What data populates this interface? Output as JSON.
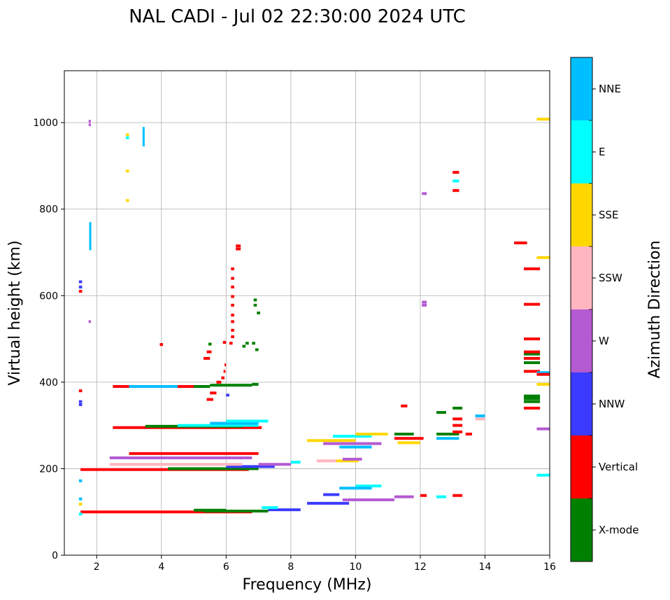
{
  "chart_data": {
    "type": "scatter",
    "title": "NAL CADI - Jul 02 22:30:00 2024 UTC",
    "xlabel": "Frequency (MHz)",
    "ylabel": "Virtual height (km)",
    "xlim": [
      1,
      16
    ],
    "ylim": [
      0,
      1120
    ],
    "xticks": [
      2,
      4,
      6,
      8,
      10,
      12,
      14,
      16
    ],
    "yticks": [
      0,
      200,
      400,
      600,
      800,
      1000
    ],
    "grid": true,
    "colorbar": {
      "title": "Azimuth Direction",
      "categories": [
        {
          "label": "X-mode",
          "color": "#008000"
        },
        {
          "label": "Vertical",
          "color": "#ff0000"
        },
        {
          "label": "NNW",
          "color": "#3b3bff"
        },
        {
          "label": "W",
          "color": "#b45ad2"
        },
        {
          "label": "SSW",
          "color": "#ffb6c1"
        },
        {
          "label": "SSE",
          "color": "#ffd700"
        },
        {
          "label": "E",
          "color": "#00ffff"
        },
        {
          "label": "NNE",
          "color": "#00bfff"
        }
      ]
    },
    "segments": [
      {
        "x": [
          1.5,
          6.8
        ],
        "y": 100,
        "c": "Vertical"
      },
      {
        "x": [
          5.3,
          7.3
        ],
        "y": 102,
        "c": "X-mode"
      },
      {
        "x": [
          7.3,
          8.3
        ],
        "y": 105,
        "c": "NNW"
      },
      {
        "x": [
          7.1,
          7.6
        ],
        "y": 110,
        "c": "E"
      },
      {
        "x": [
          5.0,
          6.0
        ],
        "y": 104,
        "c": "X-mode"
      },
      {
        "x": [
          8.5,
          9.8
        ],
        "y": 120,
        "c": "NNW"
      },
      {
        "x": [
          9.6,
          11.2
        ],
        "y": 128,
        "c": "W"
      },
      {
        "x": [
          10.0,
          10.8
        ],
        "y": 160,
        "c": "E"
      },
      {
        "x": [
          9.5,
          10.5
        ],
        "y": 155,
        "c": "NNE"
      },
      {
        "x": [
          9.0,
          9.5
        ],
        "y": 140,
        "c": "NNW"
      },
      {
        "x": [
          11.2,
          11.8
        ],
        "y": 135,
        "c": "W"
      },
      {
        "x": [
          12.5,
          12.8
        ],
        "y": 135,
        "c": "E"
      },
      {
        "x": [
          13.0,
          13.3
        ],
        "y": 138,
        "c": "Vertical"
      },
      {
        "x": [
          12.0,
          12.2
        ],
        "y": 138,
        "c": "Vertical"
      },
      {
        "x": [
          1.5,
          6.7
        ],
        "y": 198,
        "c": "Vertical"
      },
      {
        "x": [
          4.2,
          7.0
        ],
        "y": 200,
        "c": "X-mode"
      },
      {
        "x": [
          6.0,
          7.5
        ],
        "y": 205,
        "c": "NNW"
      },
      {
        "x": [
          7.0,
          8.0
        ],
        "y": 210,
        "c": "W"
      },
      {
        "x": [
          8.0,
          8.3
        ],
        "y": 215,
        "c": "E"
      },
      {
        "x": [
          8.8,
          9.4
        ],
        "y": 218,
        "c": "SSW"
      },
      {
        "x": [
          9.4,
          10.1
        ],
        "y": 218,
        "c": "SSE"
      },
      {
        "x": [
          9.6,
          10.2
        ],
        "y": 222,
        "c": "W"
      },
      {
        "x": [
          2.4,
          6.5
        ],
        "y": 210,
        "c": "SSW"
      },
      {
        "x": [
          2.4,
          6.8
        ],
        "y": 225,
        "c": "W"
      },
      {
        "x": [
          3.0,
          7.0
        ],
        "y": 235,
        "c": "Vertical"
      },
      {
        "x": [
          2.5,
          4.0
        ],
        "y": 390,
        "c": "Vertical"
      },
      {
        "x": [
          3.0,
          4.5
        ],
        "y": 390,
        "c": "NNE"
      },
      {
        "x": [
          4.5,
          5.3
        ],
        "y": 390,
        "c": "Vertical"
      },
      {
        "x": [
          5.0,
          5.5
        ],
        "y": 390,
        "c": "X-mode"
      },
      {
        "x": [
          5.5,
          6.8
        ],
        "y": 393,
        "c": "X-mode"
      },
      {
        "x": [
          6.8,
          7.0
        ],
        "y": 395,
        "c": "X-mode"
      },
      {
        "x": [
          2.5,
          7.1
        ],
        "y": 295,
        "c": "Vertical"
      },
      {
        "x": [
          3.5,
          6.5
        ],
        "y": 298,
        "c": "X-mode"
      },
      {
        "x": [
          4.5,
          7.0
        ],
        "y": 300,
        "c": "E"
      },
      {
        "x": [
          5.5,
          7.0
        ],
        "y": 305,
        "c": "NNE"
      },
      {
        "x": [
          6.0,
          7.3
        ],
        "y": 310,
        "c": "E"
      },
      {
        "x": [
          8.5,
          10.0
        ],
        "y": 265,
        "c": "SSE"
      },
      {
        "x": [
          9.3,
          10.5
        ],
        "y": 275,
        "c": "E"
      },
      {
        "x": [
          10.0,
          11.0
        ],
        "y": 280,
        "c": "SSE"
      },
      {
        "x": [
          9.5,
          10.5
        ],
        "y": 250,
        "c": "NNE"
      },
      {
        "x": [
          9.0,
          10.8
        ],
        "y": 258,
        "c": "W"
      },
      {
        "x": [
          11.2,
          12.1
        ],
        "y": 270,
        "c": "Vertical"
      },
      {
        "x": [
          11.2,
          11.8
        ],
        "y": 280,
        "c": "X-mode"
      },
      {
        "x": [
          11.3,
          12.0
        ],
        "y": 260,
        "c": "SSE"
      },
      {
        "x": [
          12.5,
          13.2
        ],
        "y": 280,
        "c": "X-mode"
      },
      {
        "x": [
          12.5,
          13.2
        ],
        "y": 270,
        "c": "NNE"
      },
      {
        "x": [
          13.0,
          13.3
        ],
        "y": 285,
        "c": "Vertical"
      },
      {
        "x": [
          13.0,
          13.3
        ],
        "y": 300,
        "c": "Vertical"
      },
      {
        "x": [
          13.0,
          13.3
        ],
        "y": 315,
        "c": "Vertical"
      },
      {
        "x": [
          13.0,
          13.3
        ],
        "y": 340,
        "c": "X-mode"
      },
      {
        "x": [
          12.5,
          12.8
        ],
        "y": 330,
        "c": "X-mode"
      },
      {
        "x": [
          13.7,
          14.0
        ],
        "y": 315,
        "c": "SSW"
      },
      {
        "x": [
          13.7,
          14.0
        ],
        "y": 322,
        "c": "NNE"
      },
      {
        "x": [
          13.4,
          13.6
        ],
        "y": 280,
        "c": "Vertical"
      },
      {
        "x": [
          11.4,
          11.6
        ],
        "y": 345,
        "c": "Vertical"
      },
      {
        "x": [
          15.2,
          15.7
        ],
        "y": 340,
        "c": "Vertical"
      },
      {
        "x": [
          15.2,
          15.7
        ],
        "y": 355,
        "c": "X-mode"
      },
      {
        "x": [
          15.2,
          15.7
        ],
        "y": 362,
        "c": "X-mode"
      },
      {
        "x": [
          15.2,
          15.7
        ],
        "y": 368,
        "c": "X-mode"
      },
      {
        "x": [
          15.2,
          15.7
        ],
        "y": 445,
        "c": "X-mode"
      },
      {
        "x": [
          15.2,
          15.7
        ],
        "y": 455,
        "c": "Vertical"
      },
      {
        "x": [
          15.2,
          15.7
        ],
        "y": 465,
        "c": "X-mode"
      },
      {
        "x": [
          15.2,
          15.7
        ],
        "y": 470,
        "c": "Vertical"
      },
      {
        "x": [
          15.2,
          15.7
        ],
        "y": 500,
        "c": "Vertical"
      },
      {
        "x": [
          15.2,
          15.7
        ],
        "y": 580,
        "c": "Vertical"
      },
      {
        "x": [
          15.2,
          15.7
        ],
        "y": 662,
        "c": "Vertical"
      },
      {
        "x": [
          15.2,
          15.7
        ],
        "y": 425,
        "c": "Vertical"
      },
      {
        "x": [
          14.9,
          15.3
        ],
        "y": 722,
        "c": "Vertical"
      },
      {
        "x": [
          15.6,
          16.0
        ],
        "y": 422,
        "c": "NNE"
      },
      {
        "x": [
          15.6,
          16.0
        ],
        "y": 418,
        "c": "Vertical"
      },
      {
        "x": [
          15.6,
          16.0
        ],
        "y": 395,
        "c": "SSE"
      },
      {
        "x": [
          15.6,
          16.0
        ],
        "y": 292,
        "c": "W"
      },
      {
        "x": [
          15.6,
          16.0
        ],
        "y": 185,
        "c": "E"
      },
      {
        "x": [
          15.6,
          16.0
        ],
        "y": 688,
        "c": "SSE"
      },
      {
        "x": [
          15.6,
          16.0
        ],
        "y": 1008,
        "c": "SSE"
      },
      {
        "x": [
          13.0,
          13.2
        ],
        "y": 885,
        "c": "Vertical"
      },
      {
        "x": [
          13.0,
          13.2
        ],
        "y": 865,
        "c": "E"
      },
      {
        "x": [
          13.0,
          13.2
        ],
        "y": 843,
        "c": "Vertical"
      },
      {
        "x": [
          12.05,
          12.2
        ],
        "y": 836,
        "c": "W"
      },
      {
        "x": [
          12.05,
          12.2
        ],
        "y": 585,
        "c": "W"
      },
      {
        "x": [
          12.05,
          12.2
        ],
        "y": 578,
        "c": "W"
      },
      {
        "x": [
          1.45,
          1.55
        ],
        "y": 632,
        "c": "NNW"
      },
      {
        "x": [
          1.45,
          1.55
        ],
        "y": 620,
        "c": "NNW"
      },
      {
        "x": [
          1.45,
          1.55
        ],
        "y": 610,
        "c": "Vertical"
      },
      {
        "x": [
          1.45,
          1.55
        ],
        "y": 380,
        "c": "Vertical"
      },
      {
        "x": [
          1.45,
          1.55
        ],
        "y": 355,
        "c": "NNW"
      },
      {
        "x": [
          1.45,
          1.55
        ],
        "y": 348,
        "c": "NNW"
      },
      {
        "x": [
          1.45,
          1.55
        ],
        "y": 172,
        "c": "NNE"
      },
      {
        "x": [
          1.45,
          1.55
        ],
        "y": 130,
        "c": "NNE"
      },
      {
        "x": [
          1.45,
          1.55
        ],
        "y": 118,
        "c": "SSE"
      },
      {
        "x": [
          1.45,
          1.55
        ],
        "y": 95,
        "c": "E"
      },
      {
        "x": [
          1.75,
          1.82
        ],
        "y": 540,
        "c": "W"
      },
      {
        "x": [
          1.75,
          1.82
        ],
        "y": 1003,
        "c": "W"
      },
      {
        "x": [
          1.75,
          1.82
        ],
        "y": 995,
        "c": "W"
      },
      {
        "x": [
          2.9,
          3.0
        ],
        "y": 972,
        "c": "SSE"
      },
      {
        "x": [
          2.9,
          3.0
        ],
        "y": 965,
        "c": "E"
      },
      {
        "x": [
          2.9,
          3.0
        ],
        "y": 888,
        "c": "SSE"
      },
      {
        "x": [
          2.9,
          3.0
        ],
        "y": 820,
        "c": "SSE"
      },
      {
        "x": [
          3.95,
          4.05
        ],
        "y": 487,
        "c": "Vertical"
      },
      {
        "x": [
          6.3,
          6.45
        ],
        "y": 715,
        "c": "Vertical"
      },
      {
        "x": [
          6.3,
          6.45
        ],
        "y": 708,
        "c": "Vertical"
      },
      {
        "x": [
          6.15,
          6.25
        ],
        "y": 662,
        "c": "Vertical"
      },
      {
        "x": [
          6.15,
          6.25
        ],
        "y": 640,
        "c": "Vertical"
      },
      {
        "x": [
          6.15,
          6.25
        ],
        "y": 620,
        "c": "Vertical"
      },
      {
        "x": [
          6.15,
          6.25
        ],
        "y": 598,
        "c": "Vertical"
      },
      {
        "x": [
          6.15,
          6.25
        ],
        "y": 578,
        "c": "Vertical"
      },
      {
        "x": [
          6.15,
          6.25
        ],
        "y": 555,
        "c": "Vertical"
      },
      {
        "x": [
          6.15,
          6.25
        ],
        "y": 540,
        "c": "Vertical"
      },
      {
        "x": [
          6.15,
          6.25
        ],
        "y": 520,
        "c": "Vertical"
      },
      {
        "x": [
          6.15,
          6.25
        ],
        "y": 505,
        "c": "Vertical"
      },
      {
        "x": [
          6.1,
          6.2
        ],
        "y": 490,
        "c": "Vertical"
      },
      {
        "x": [
          5.9,
          6.0
        ],
        "y": 492,
        "c": "Vertical"
      },
      {
        "x": [
          5.95,
          6.0
        ],
        "y": 440,
        "c": "Vertical"
      },
      {
        "x": [
          5.92,
          5.98
        ],
        "y": 425,
        "c": "Vertical"
      },
      {
        "x": [
          5.85,
          5.95
        ],
        "y": 410,
        "c": "Vertical"
      },
      {
        "x": [
          5.7,
          5.85
        ],
        "y": 400,
        "c": "Vertical"
      },
      {
        "x": [
          5.5,
          5.7
        ],
        "y": 375,
        "c": "Vertical"
      },
      {
        "x": [
          5.4,
          5.6
        ],
        "y": 360,
        "c": "Vertical"
      },
      {
        "x": [
          5.3,
          5.5
        ],
        "y": 455,
        "c": "Vertical"
      },
      {
        "x": [
          5.4,
          5.55
        ],
        "y": 470,
        "c": "Vertical"
      },
      {
        "x": [
          5.45,
          5.55
        ],
        "y": 488,
        "c": "X-mode"
      },
      {
        "x": [
          6.5,
          6.6
        ],
        "y": 483,
        "c": "X-mode"
      },
      {
        "x": [
          6.6,
          6.7
        ],
        "y": 490,
        "c": "X-mode"
      },
      {
        "x": [
          6.8,
          6.9
        ],
        "y": 490,
        "c": "X-mode"
      },
      {
        "x": [
          6.85,
          6.95
        ],
        "y": 590,
        "c": "X-mode"
      },
      {
        "x": [
          6.85,
          6.95
        ],
        "y": 578,
        "c": "X-mode"
      },
      {
        "x": [
          6.95,
          7.05
        ],
        "y": 560,
        "c": "X-mode"
      },
      {
        "x": [
          6.9,
          7.0
        ],
        "y": 475,
        "c": "X-mode"
      },
      {
        "x": [
          6.0,
          6.1
        ],
        "y": 370,
        "c": "NNW"
      }
    ],
    "vertical_runs": [
      {
        "x": 1.8,
        "y": [
          705,
          770
        ],
        "c": "NNE"
      },
      {
        "x": 3.45,
        "y": [
          945,
          990
        ],
        "c": "NNE"
      }
    ]
  }
}
